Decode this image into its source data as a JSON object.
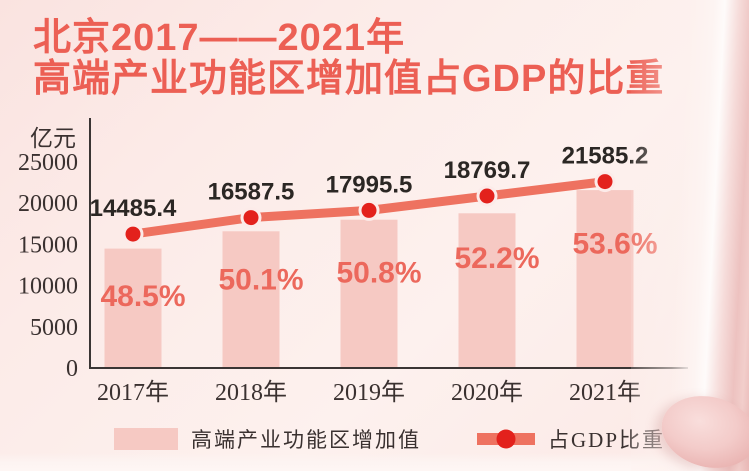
{
  "title": {
    "line1": "北京2017——2021年",
    "line2": "高端产业功能区增加值占GDP的比重"
  },
  "chart_data": {
    "type": "bar",
    "subtype": "bar-with-line-overlay",
    "categories": [
      "2017年",
      "2018年",
      "2019年",
      "2020年",
      "2021年"
    ],
    "series": [
      {
        "name": "高端产业功能区增加值",
        "type": "bar",
        "unit": "亿元",
        "values": [
          14485.4,
          16587.5,
          17995.5,
          18769.7,
          21585.2
        ]
      },
      {
        "name": "占GDP比重",
        "type": "line",
        "unit": "%",
        "values": [
          48.5,
          50.1,
          50.8,
          52.2,
          53.6
        ]
      }
    ],
    "value_labels": [
      "14485.4",
      "16587.5",
      "17995.5",
      "18769.7",
      "21585.2"
    ],
    "percent_labels": [
      "48.5%",
      "50.1%",
      "50.8%",
      "52.2%",
      "53.6%"
    ],
    "y_axis": {
      "unit_label": "亿元",
      "ticks": [
        0,
        5000,
        10000,
        15000,
        20000,
        25000
      ],
      "max": 25000
    },
    "percent_axis_range": [
      35.5,
      55.5
    ],
    "grid": false,
    "legend_position": "bottom"
  },
  "legend": {
    "items": [
      {
        "label": "高端产业功能区增加值",
        "swatch": "bar"
      },
      {
        "label": "占GDP比重",
        "swatch": "line-dot"
      }
    ]
  },
  "colors": {
    "background": "#fcebe8",
    "title": "#ec5f54",
    "bar": "#f6c9c3",
    "line": "#ee7260",
    "dot": "#e3211c",
    "dot_ring": "#fcebe9",
    "value_text": "#2b2724",
    "percent_text": "#ec685c",
    "axis": "#3a3534",
    "tick_text": "#3a3130"
  }
}
